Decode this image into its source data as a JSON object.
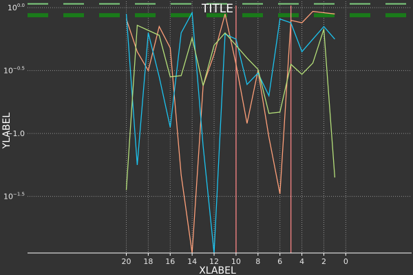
{
  "chart_data": {
    "type": "line",
    "title": "TITLE",
    "xlabel": "XLABEL",
    "ylabel": "YLABEL",
    "x_axis_reversed": true,
    "y_scale": "log10",
    "xlim": [
      29,
      -6
    ],
    "ylim": [
      -1.95,
      0.05
    ],
    "xticks": [
      20,
      18,
      16,
      14,
      12,
      10,
      8,
      6,
      4,
      2,
      0
    ],
    "yticks": [
      {
        "value": 0.0,
        "base": "10",
        "exponent": "0.0"
      },
      {
        "value": -0.5,
        "base": "10",
        "exponent": "−0.5"
      },
      {
        "value": -1.0,
        "base": "",
        "exponent": "−1.0"
      },
      {
        "value": -1.5,
        "base": "10",
        "exponent": "−1.5"
      }
    ],
    "grid": true,
    "hlines": [
      {
        "y": 0.03,
        "color": "#7fcf7f",
        "style": "dashed"
      },
      {
        "y": -0.06,
        "color": "#1a7a1a",
        "style": "dashed"
      }
    ],
    "vlines": [
      {
        "x": 10,
        "color": "#f08080"
      },
      {
        "x": 5,
        "color": "#f08080"
      }
    ],
    "x": [
      20,
      19,
      18,
      17,
      16,
      15,
      14,
      13,
      12,
      11,
      10,
      9,
      8,
      7,
      6,
      5,
      4,
      3,
      2,
      1
    ],
    "series": [
      {
        "color": "#ffa07a",
        "values": [
          -0.09,
          -0.35,
          -0.5,
          -0.15,
          -0.32,
          -1.33,
          -1.95,
          -0.62,
          -0.37,
          -0.05,
          -0.45,
          -0.92,
          -0.5,
          -1.03,
          -1.48,
          -0.1,
          -0.12,
          -0.03,
          -0.04,
          -0.05
        ]
      },
      {
        "color": "#1cc4f0",
        "values": [
          -0.05,
          -1.25,
          -0.2,
          -0.55,
          -0.95,
          -0.2,
          -0.04,
          -1.1,
          -1.95,
          -0.21,
          -0.25,
          -0.61,
          -0.52,
          -0.7,
          -0.09,
          -0.12,
          -0.35,
          -0.25,
          -0.15,
          -0.25
        ]
      },
      {
        "color": "#b5e07a",
        "values": [
          -1.45,
          -0.14,
          -0.18,
          -0.22,
          -0.55,
          -0.54,
          -0.24,
          -0.62,
          -0.3,
          -0.2,
          -0.3,
          -0.4,
          -0.49,
          -0.84,
          -0.83,
          -0.45,
          -0.53,
          -0.44,
          -0.17,
          -1.35
        ]
      }
    ]
  }
}
